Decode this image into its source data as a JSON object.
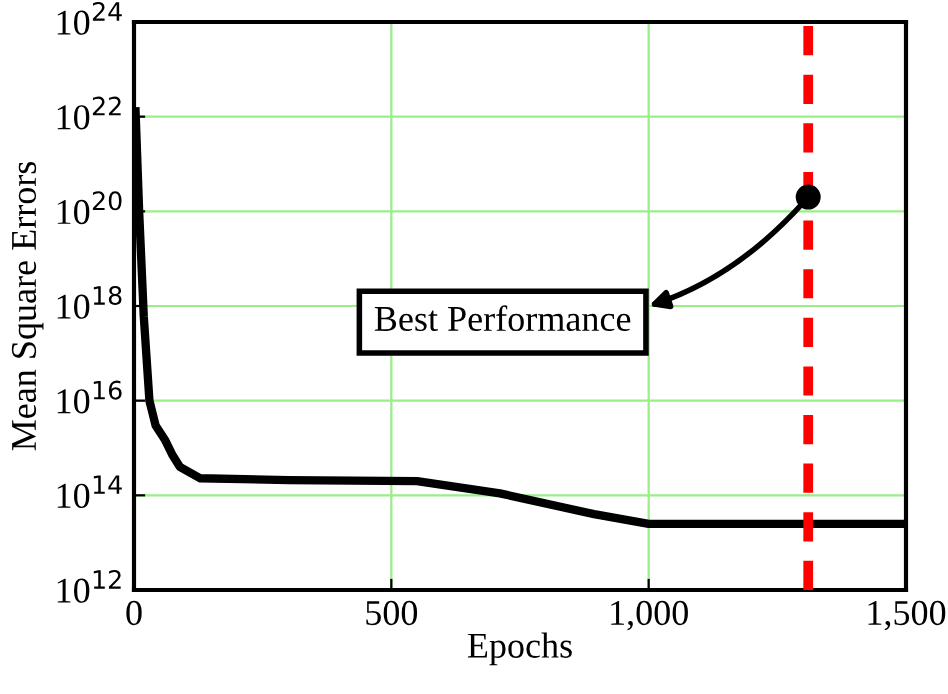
{
  "chart_data": {
    "type": "line",
    "xlabel": "Epochs",
    "ylabel": "Mean Square Errors",
    "log": "y",
    "grid": true,
    "marker": "none",
    "line_style": "solid",
    "xlim": [
      0,
      1500
    ],
    "xticks": [
      0,
      500,
      {
        "value": 1000,
        "label": "1,000"
      },
      {
        "value": 1500,
        "label": "1,500"
      }
    ],
    "ylim": [
      1000000000000.0,
      1e+24
    ],
    "yticks": [
      {
        "value": 1000000000000.0,
        "label": "10$^{12}$"
      },
      {
        "value": 100000000000000.0,
        "label": "10$^{14}$"
      },
      {
        "value": 1e+16,
        "label": "10$^{16}$"
      },
      {
        "value": 1e+18,
        "label": "10$^{18}$"
      },
      {
        "value": 1e+20,
        "label": "10$^{20}$"
      },
      {
        "value": 1e+22,
        "label": "10$^{22}$"
      },
      {
        "value": 1e+24,
        "label": "10$^{24}$"
      }
    ],
    "x": [
      3,
      10,
      19,
      30,
      42,
      60,
      75,
      89,
      128,
      300,
      550,
      711,
      894,
      1000,
      1500
    ],
    "series": [
      {
        "color": "#000000",
        "values": [
          1.3e+22,
          1e+20,
          6e+17,
          1e+16,
          3000000000000000.0,
          1500000000000000.0,
          700000000000000.0,
          400000000000000.0,
          230000000000000.0,
          210000000000000.0,
          200000000000000.0,
          110000000000000.0,
          40000000000000.0,
          25000000000000.0,
          25000000000000.0
        ]
      }
    ],
    "ref_lines": [
      {
        "axis": "x",
        "value": 1310,
        "color": "#ff0000",
        "line_style": "dashed"
      }
    ],
    "annotations": [
      {
        "text": "Best Performance",
        "x": 1310,
        "y": 2e+20
      }
    ]
  }
}
